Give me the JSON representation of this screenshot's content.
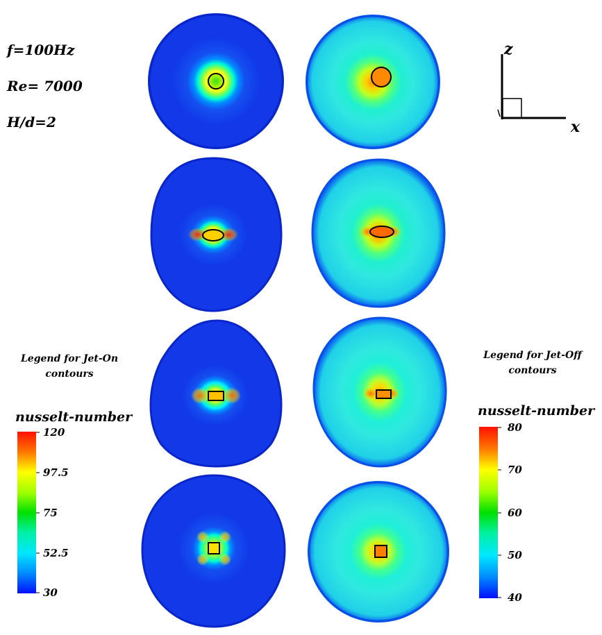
{
  "parameters": {
    "frequency": "f=100Hz",
    "reynolds": "Re= 7000",
    "spacing": "H/d=2"
  },
  "axes": {
    "vertical_label": "z",
    "horizontal_label": "x"
  },
  "legend_jet_on": {
    "title_line1": "Legend for Jet-On",
    "title_line2": "contours",
    "variable": "nusselt-number",
    "ticks": [
      "120",
      "97.5",
      "75",
      "52.5",
      "30"
    ]
  },
  "legend_jet_off": {
    "title_line1": "Legend for Jet-Off",
    "title_line2": "contours",
    "variable": "nusselt-number",
    "ticks": [
      "80",
      "70",
      "60",
      "50",
      "40"
    ]
  },
  "colors": {
    "low": "#0000ff",
    "mid_low": "#00e5ff",
    "mid": "#00e000",
    "mid_high": "#ffff00",
    "high": "#ff0000",
    "outline": "#000000"
  },
  "contours": [
    {
      "row": 1,
      "nozzle": "circle",
      "jet_on_peak": "green",
      "jet_off_peak": "orange"
    },
    {
      "row": 2,
      "nozzle": "ellipse",
      "jet_on_peak": "red-orange",
      "jet_off_peak": "orange"
    },
    {
      "row": 3,
      "nozzle": "rectangle",
      "jet_on_peak": "orange",
      "jet_off_peak": "orange"
    },
    {
      "row": 4,
      "nozzle": "square",
      "jet_on_peak": "yellow",
      "jet_off_peak": "orange"
    }
  ]
}
